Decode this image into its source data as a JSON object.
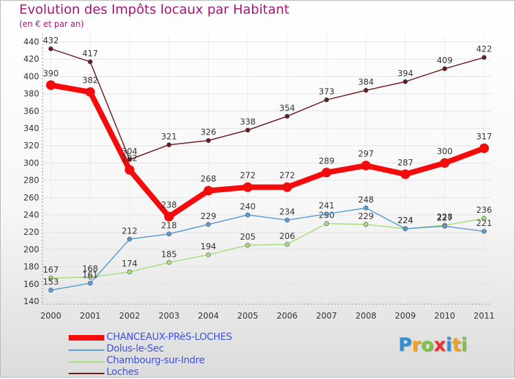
{
  "header": {
    "title": "Evolution des Impôts locaux par Habitant",
    "subtitle": "(en € et par an)"
  },
  "logo": {
    "letters": [
      "P",
      "r",
      "o",
      "x",
      "i",
      "t",
      "i"
    ],
    "colors": [
      "#2f8fd8",
      "#f2a11a",
      "#7dc242",
      "#e8312f",
      "#2f8fd8",
      "#f2a11a",
      "#7dc242"
    ]
  },
  "chart_data": {
    "type": "line",
    "title": "Evolution des Impôts locaux par Habitant",
    "subtitle": "(en € et par an)",
    "xlabel": "",
    "ylabel": "",
    "categories": [
      "2000",
      "2001",
      "2002",
      "2003",
      "2004",
      "2005",
      "2006",
      "2007",
      "2008",
      "2009",
      "2010",
      "2011"
    ],
    "y_ticks": [
      "140",
      "160",
      "180",
      "200",
      "220",
      "240",
      "260",
      "280",
      "300",
      "320",
      "340",
      "360",
      "380",
      "400",
      "420",
      "440"
    ],
    "ylim": [
      140,
      440
    ],
    "grid": "horizontal",
    "legend_position": "bottom-left",
    "series": [
      {
        "name": "Loches",
        "color": "#6b1a1e",
        "values": [
          432,
          417,
          304,
          321,
          326,
          338,
          354,
          373,
          384,
          394,
          409,
          422
        ],
        "labels": [
          "432",
          "417",
          "304",
          "321",
          "326",
          "338",
          "354",
          "373",
          "384",
          "394",
          "409",
          "422"
        ]
      },
      {
        "name": "Chambourg-sur-Indre",
        "color": "#a6dd7e",
        "values": [
          167,
          168,
          174,
          185,
          194,
          205,
          206,
          230,
          229,
          224,
          228,
          236
        ],
        "labels": [
          "167",
          "168",
          "174",
          "185",
          "194",
          "205",
          "206",
          "230",
          "229",
          "224",
          "228",
          "236"
        ]
      },
      {
        "name": "Dolus-le-Sec",
        "color": "#5b9bd2",
        "values": [
          153,
          161,
          212,
          218,
          229,
          240,
          234,
          241,
          248,
          224,
          227,
          221
        ],
        "labels": [
          "153",
          "161",
          "212",
          "218",
          "229",
          "240",
          "234",
          "241",
          "248",
          "224",
          "227",
          "221"
        ]
      },
      {
        "name": "CHANCEAUX-PRèS-LOCHES",
        "color": "#f50b0b",
        "values": [
          390,
          382,
          292,
          238,
          268,
          272,
          272,
          289,
          297,
          287,
          300,
          317
        ],
        "labels": [
          "390",
          "382",
          "292",
          "238",
          "268",
          "272",
          "272",
          "289",
          "297",
          "287",
          "300",
          "317"
        ]
      }
    ],
    "legend_order": [
      "CHANCEAUX-PRèS-LOCHES",
      "Dolus-le-Sec",
      "Chambourg-sur-Indre",
      "Loches"
    ]
  }
}
